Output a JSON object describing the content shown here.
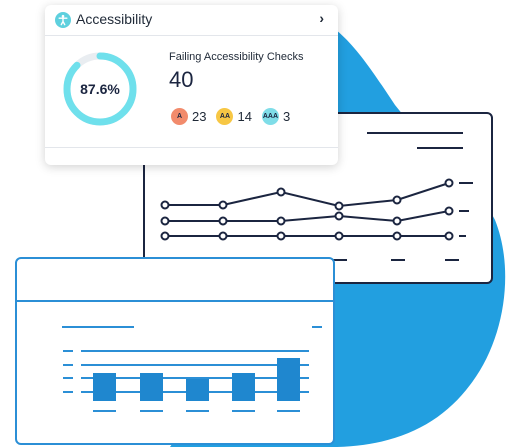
{
  "accessibility": {
    "title": "Accessibility",
    "score": "87.6%",
    "score_fraction": 0.876,
    "failing_label": "Failing Accessibility Checks",
    "failing_count": "40",
    "badges": [
      {
        "level": "A",
        "count": "23"
      },
      {
        "level": "AA",
        "count": "14"
      },
      {
        "level": "AAA",
        "count": "3"
      }
    ]
  },
  "colors": {
    "blob": "#229fe0",
    "ring": "#6fe0ec",
    "dark": "#1b2540",
    "bar": "#1f87cf"
  },
  "icons": [
    "accessibility-icon",
    "chevron-right-icon"
  ]
}
